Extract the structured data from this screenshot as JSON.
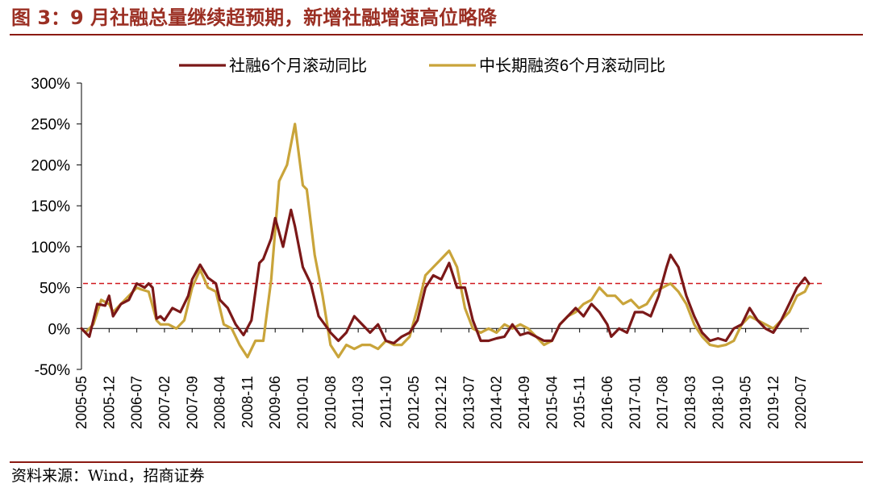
{
  "header": {
    "title": "图 3：9 月社融总量继续超预期，新增社融增速高位略降"
  },
  "footer": {
    "source": "资料来源：Wind，招商证券"
  },
  "colors": {
    "accent": "#9b2f23",
    "rule": "#8b1a12",
    "series1": "#7b1818",
    "series2": "#c9a43a",
    "reference": "#d0181e"
  },
  "chart_data": {
    "type": "line",
    "title": "",
    "xlabel": "",
    "ylabel": "",
    "ylim": [
      -50,
      300
    ],
    "yunit": "%",
    "yticks": [
      -50,
      0,
      50,
      100,
      150,
      200,
      250,
      300
    ],
    "ytick_labels": [
      "-50%",
      "0%",
      "50%",
      "100%",
      "150%",
      "200%",
      "250%",
      "300%"
    ],
    "xticks": [
      "2005-05",
      "2005-12",
      "2006-07",
      "2007-02",
      "2007-09",
      "2008-04",
      "2008-11",
      "2009-06",
      "2010-01",
      "2010-08",
      "2011-03",
      "2011-10",
      "2012-05",
      "2012-12",
      "2013-07",
      "2014-02",
      "2014-09",
      "2015-04",
      "2015-11",
      "2016-06",
      "2017-01",
      "2017-08",
      "2018-03",
      "2018-10",
      "2019-05",
      "2019-12",
      "2020-07"
    ],
    "x_start": "2005-05",
    "x_end": "2020-09",
    "grid": false,
    "legend_position": "top",
    "reference_line": {
      "value": 55,
      "style": "dashed"
    },
    "series": [
      {
        "name": "社融6个月滚动同比",
        "points": [
          [
            "2005-05",
            0
          ],
          [
            "2005-07",
            -10
          ],
          [
            "2005-09",
            30
          ],
          [
            "2005-11",
            28
          ],
          [
            "2005-12",
            40
          ],
          [
            "2006-01",
            15
          ],
          [
            "2006-03",
            30
          ],
          [
            "2006-05",
            35
          ],
          [
            "2006-07",
            55
          ],
          [
            "2006-09",
            50
          ],
          [
            "2006-10",
            55
          ],
          [
            "2006-11",
            50
          ],
          [
            "2006-12",
            12
          ],
          [
            "2007-01",
            15
          ],
          [
            "2007-02",
            10
          ],
          [
            "2007-04",
            25
          ],
          [
            "2007-06",
            20
          ],
          [
            "2007-08",
            40
          ],
          [
            "2007-09",
            60
          ],
          [
            "2007-11",
            78
          ],
          [
            "2008-01",
            62
          ],
          [
            "2008-03",
            55
          ],
          [
            "2008-04",
            35
          ],
          [
            "2008-06",
            25
          ],
          [
            "2008-08",
            5
          ],
          [
            "2008-10",
            -8
          ],
          [
            "2008-12",
            10
          ],
          [
            "2009-02",
            80
          ],
          [
            "2009-03",
            85
          ],
          [
            "2009-05",
            110
          ],
          [
            "2009-06",
            135
          ],
          [
            "2009-08",
            100
          ],
          [
            "2009-10",
            145
          ],
          [
            "2009-11",
            125
          ],
          [
            "2010-01",
            75
          ],
          [
            "2010-03",
            55
          ],
          [
            "2010-05",
            15
          ],
          [
            "2010-07",
            2
          ],
          [
            "2010-08",
            -5
          ],
          [
            "2010-10",
            -15
          ],
          [
            "2010-12",
            -5
          ],
          [
            "2011-02",
            15
          ],
          [
            "2011-04",
            5
          ],
          [
            "2011-06",
            -5
          ],
          [
            "2011-08",
            5
          ],
          [
            "2011-10",
            -15
          ],
          [
            "2011-12",
            -18
          ],
          [
            "2012-02",
            -10
          ],
          [
            "2012-04",
            -5
          ],
          [
            "2012-06",
            10
          ],
          [
            "2012-08",
            50
          ],
          [
            "2012-10",
            65
          ],
          [
            "2012-12",
            60
          ],
          [
            "2013-02",
            80
          ],
          [
            "2013-04",
            50
          ],
          [
            "2013-06",
            50
          ],
          [
            "2013-08",
            10
          ],
          [
            "2013-10",
            -15
          ],
          [
            "2013-12",
            -15
          ],
          [
            "2014-02",
            -12
          ],
          [
            "2014-04",
            -10
          ],
          [
            "2014-06",
            5
          ],
          [
            "2014-08",
            -8
          ],
          [
            "2014-10",
            -5
          ],
          [
            "2014-12",
            -10
          ],
          [
            "2015-02",
            -15
          ],
          [
            "2015-04",
            -15
          ],
          [
            "2015-06",
            5
          ],
          [
            "2015-08",
            15
          ],
          [
            "2015-10",
            25
          ],
          [
            "2015-12",
            15
          ],
          [
            "2016-02",
            30
          ],
          [
            "2016-04",
            20
          ],
          [
            "2016-06",
            5
          ],
          [
            "2016-07",
            -10
          ],
          [
            "2016-09",
            0
          ],
          [
            "2016-11",
            -5
          ],
          [
            "2017-01",
            20
          ],
          [
            "2017-03",
            20
          ],
          [
            "2017-05",
            15
          ],
          [
            "2017-07",
            40
          ],
          [
            "2017-09",
            75
          ],
          [
            "2017-10",
            90
          ],
          [
            "2017-12",
            75
          ],
          [
            "2018-02",
            40
          ],
          [
            "2018-04",
            15
          ],
          [
            "2018-06",
            -5
          ],
          [
            "2018-08",
            -15
          ],
          [
            "2018-10",
            -12
          ],
          [
            "2018-12",
            -15
          ],
          [
            "2019-02",
            0
          ],
          [
            "2019-04",
            5
          ],
          [
            "2019-06",
            25
          ],
          [
            "2019-08",
            10
          ],
          [
            "2019-10",
            0
          ],
          [
            "2019-12",
            -5
          ],
          [
            "2020-02",
            10
          ],
          [
            "2020-04",
            30
          ],
          [
            "2020-06",
            50
          ],
          [
            "2020-08",
            62
          ],
          [
            "2020-09",
            55
          ]
        ]
      },
      {
        "name": "中长期融资6个月滚动同比",
        "points": [
          [
            "2005-05",
            0
          ],
          [
            "2005-06",
            -5
          ],
          [
            "2005-08",
            5
          ],
          [
            "2005-10",
            35
          ],
          [
            "2005-12",
            30
          ],
          [
            "2006-01",
            20
          ],
          [
            "2006-03",
            30
          ],
          [
            "2006-05",
            40
          ],
          [
            "2006-07",
            50
          ],
          [
            "2006-08",
            48
          ],
          [
            "2006-10",
            45
          ],
          [
            "2006-12",
            10
          ],
          [
            "2007-01",
            5
          ],
          [
            "2007-03",
            5
          ],
          [
            "2007-05",
            0
          ],
          [
            "2007-07",
            10
          ],
          [
            "2007-09",
            50
          ],
          [
            "2007-11",
            72
          ],
          [
            "2008-01",
            50
          ],
          [
            "2008-03",
            45
          ],
          [
            "2008-05",
            5
          ],
          [
            "2008-07",
            0
          ],
          [
            "2008-09",
            -20
          ],
          [
            "2008-11",
            -35
          ],
          [
            "2009-01",
            -15
          ],
          [
            "2009-03",
            -15
          ],
          [
            "2009-05",
            60
          ],
          [
            "2009-07",
            180
          ],
          [
            "2009-09",
            200
          ],
          [
            "2009-11",
            250
          ],
          [
            "2010-01",
            175
          ],
          [
            "2010-02",
            170
          ],
          [
            "2010-04",
            90
          ],
          [
            "2010-06",
            40
          ],
          [
            "2010-08",
            -20
          ],
          [
            "2010-10",
            -35
          ],
          [
            "2010-12",
            -20
          ],
          [
            "2011-02",
            -25
          ],
          [
            "2011-04",
            -20
          ],
          [
            "2011-06",
            -20
          ],
          [
            "2011-08",
            -25
          ],
          [
            "2011-10",
            -15
          ],
          [
            "2011-12",
            -20
          ],
          [
            "2012-02",
            -20
          ],
          [
            "2012-04",
            -10
          ],
          [
            "2012-06",
            25
          ],
          [
            "2012-08",
            65
          ],
          [
            "2012-10",
            75
          ],
          [
            "2012-12",
            85
          ],
          [
            "2013-02",
            95
          ],
          [
            "2013-04",
            75
          ],
          [
            "2013-06",
            25
          ],
          [
            "2013-08",
            0
          ],
          [
            "2013-10",
            -5
          ],
          [
            "2013-12",
            0
          ],
          [
            "2014-02",
            -5
          ],
          [
            "2014-04",
            5
          ],
          [
            "2014-06",
            0
          ],
          [
            "2014-08",
            5
          ],
          [
            "2014-10",
            0
          ],
          [
            "2014-12",
            -10
          ],
          [
            "2015-02",
            -20
          ],
          [
            "2015-04",
            -15
          ],
          [
            "2015-06",
            5
          ],
          [
            "2015-08",
            15
          ],
          [
            "2015-10",
            20
          ],
          [
            "2015-12",
            30
          ],
          [
            "2016-02",
            35
          ],
          [
            "2016-04",
            50
          ],
          [
            "2016-06",
            40
          ],
          [
            "2016-08",
            40
          ],
          [
            "2016-10",
            30
          ],
          [
            "2016-12",
            35
          ],
          [
            "2017-02",
            25
          ],
          [
            "2017-04",
            30
          ],
          [
            "2017-06",
            45
          ],
          [
            "2017-08",
            50
          ],
          [
            "2017-10",
            55
          ],
          [
            "2017-12",
            45
          ],
          [
            "2018-02",
            30
          ],
          [
            "2018-04",
            5
          ],
          [
            "2018-06",
            -10
          ],
          [
            "2018-08",
            -20
          ],
          [
            "2018-10",
            -22
          ],
          [
            "2018-12",
            -20
          ],
          [
            "2019-02",
            -15
          ],
          [
            "2019-04",
            5
          ],
          [
            "2019-06",
            15
          ],
          [
            "2019-08",
            10
          ],
          [
            "2019-10",
            5
          ],
          [
            "2019-12",
            0
          ],
          [
            "2020-02",
            10
          ],
          [
            "2020-04",
            20
          ],
          [
            "2020-06",
            40
          ],
          [
            "2020-08",
            45
          ],
          [
            "2020-09",
            55
          ]
        ]
      }
    ]
  }
}
